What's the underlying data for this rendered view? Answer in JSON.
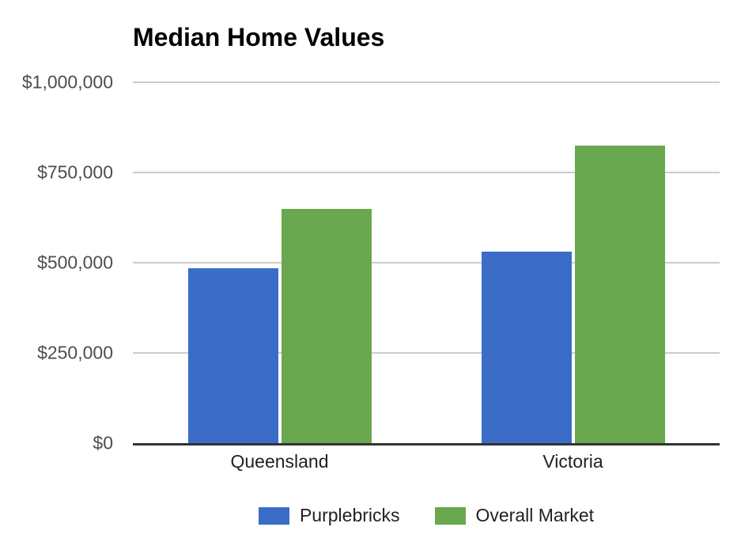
{
  "chart_data": {
    "type": "bar",
    "title": "Median Home Values",
    "categories": [
      "Queensland",
      "Victoria"
    ],
    "series": [
      {
        "name": "Purplebricks",
        "color": "#3b6cc8",
        "values": [
          485000,
          530000
        ]
      },
      {
        "name": "Overall Market",
        "color": "#6aa84f",
        "values": [
          650000,
          825000
        ]
      }
    ],
    "ylim": [
      0,
      1000000
    ],
    "y_ticks": [
      {
        "value": 0,
        "label": "$0"
      },
      {
        "value": 250000,
        "label": "$250,000"
      },
      {
        "value": 500000,
        "label": "$500,000"
      },
      {
        "value": 750000,
        "label": "$750,000"
      },
      {
        "value": 1000000,
        "label": "$1,000,000"
      }
    ],
    "grid": true,
    "legend_position": "bottom"
  },
  "colors": {
    "background": "#ffffff",
    "grid_line": "#cccccc",
    "axis_line": "#333333",
    "title_text": "#000000",
    "y_tick_text": "#4d4d4d",
    "x_tick_text": "#212121",
    "legend_text": "#212121"
  }
}
